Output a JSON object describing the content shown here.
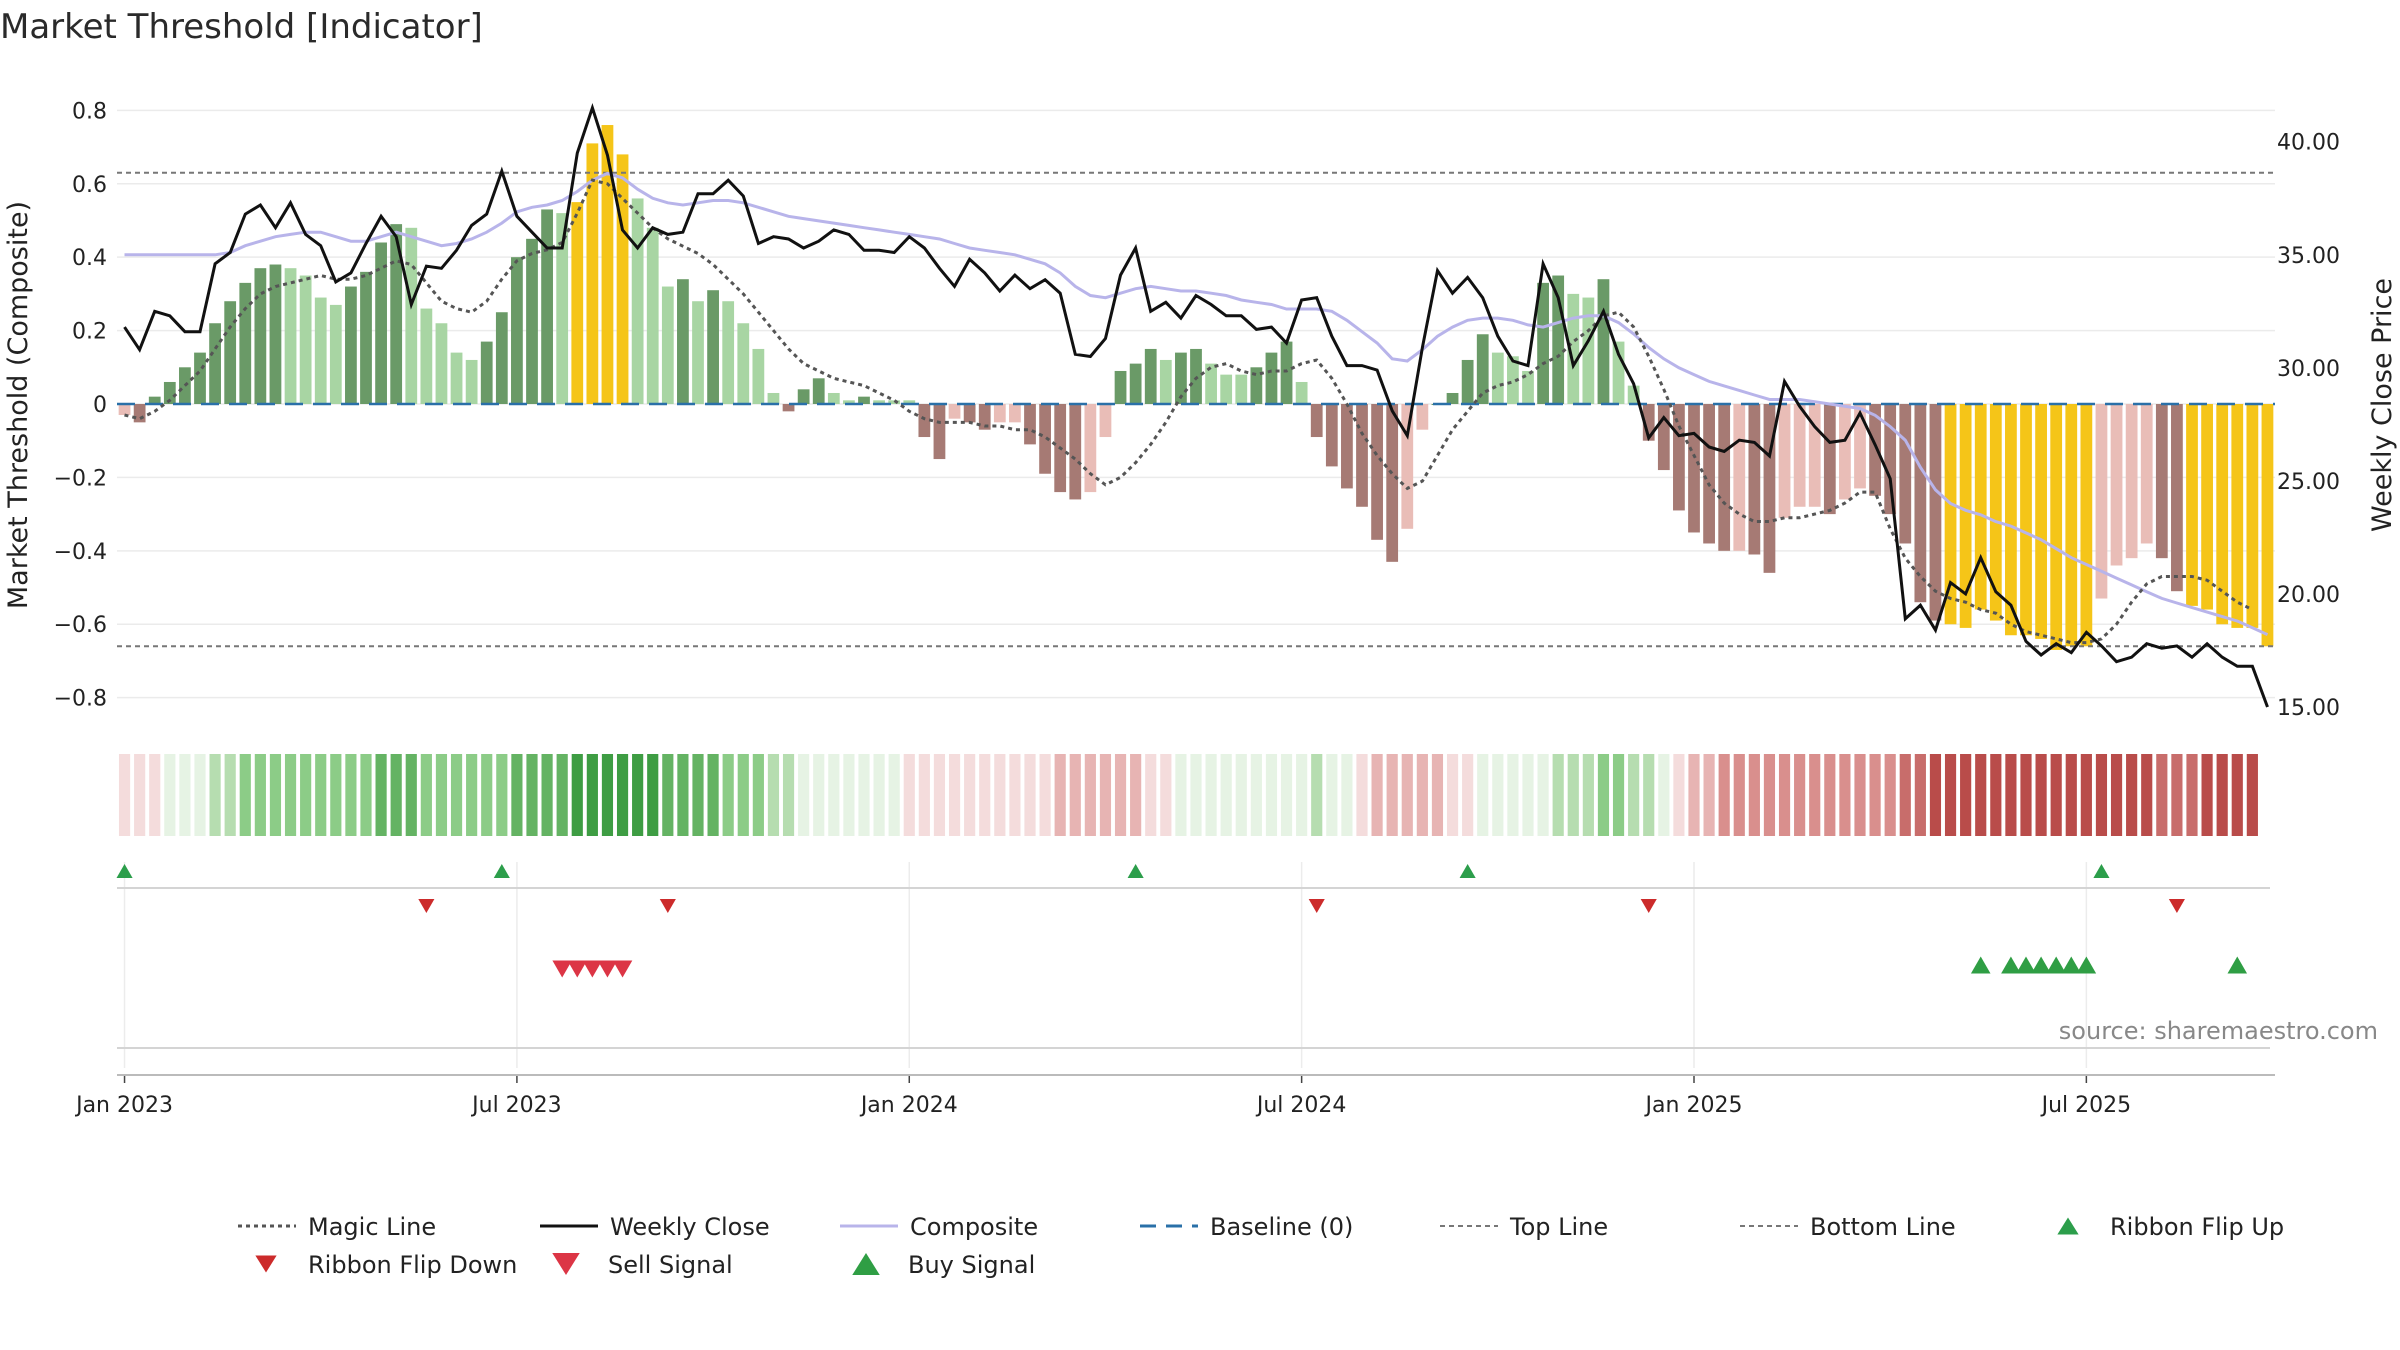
{
  "chart_data": {
    "type": "bar",
    "title": "Market Threshold [Indicator]",
    "ylabel_left": "Market Threshold (Composite)",
    "ylabel_right": "Weekly Close Price",
    "ylim_left": [
      -0.85,
      0.85
    ],
    "ylim_right": [
      14.6,
      42.2
    ],
    "left_ticks": [
      0.8,
      0.6,
      0.4,
      0.2,
      0,
      -0.2,
      -0.4,
      -0.6,
      -0.8
    ],
    "left_tick_labels": [
      "0.8",
      "0.6",
      "0.4",
      "0.2",
      "0",
      "−0.2",
      "−0.4",
      "−0.6",
      "−0.8"
    ],
    "right_ticks": [
      40,
      35,
      30,
      25,
      20,
      15
    ],
    "right_tick_labels": [
      "40.00",
      "35.00",
      "30.00",
      "25.00",
      "20.00",
      "15.00"
    ],
    "x_ticks": [
      1,
      27,
      53,
      79,
      105,
      131
    ],
    "x_tick_labels": [
      "Jan 2023",
      "Jul 2023",
      "Jan 2024",
      "Jul 2024",
      "Jan 2025",
      "Jul 2025"
    ],
    "top_line": 0.63,
    "bottom_line": -0.66,
    "baseline": 0,
    "weekly_close": [
      31.8,
      30.8,
      32.5,
      32.3,
      31.6,
      31.6,
      34.6,
      35.1,
      36.8,
      37.2,
      36.2,
      37.3,
      35.9,
      35.4,
      33.8,
      34.2,
      35.5,
      36.7,
      35.8,
      32.8,
      34.5,
      34.4,
      35.2,
      36.3,
      36.8,
      38.7,
      36.7,
      36.0,
      35.3,
      35.3,
      39.5,
      41.5,
      39.4,
      36.1,
      35.3,
      36.2,
      35.9,
      36.0,
      37.7,
      37.7,
      38.3,
      37.6,
      35.5,
      35.8,
      35.7,
      35.3,
      35.6,
      36.1,
      35.9,
      35.2,
      35.2,
      35.1,
      35.8,
      35.3,
      34.4,
      33.6,
      34.8,
      34.2,
      33.4,
      34.1,
      33.5,
      33.9,
      33.3,
      30.6,
      30.5,
      31.3,
      34.1,
      35.3,
      32.5,
      32.9,
      32.2,
      33.2,
      32.8,
      32.3,
      32.3,
      31.7,
      31.8,
      31.1,
      33.0,
      33.1,
      31.4,
      30.1,
      30.1,
      29.9,
      28.1,
      27.0,
      30.9,
      34.3,
      33.3,
      34.0,
      33.1,
      31.4,
      30.3,
      30.1,
      34.6,
      33.1,
      30.1,
      31.2,
      32.5,
      30.6,
      29.3,
      26.9,
      27.8,
      27.0,
      27.1,
      26.5,
      26.3,
      26.8,
      26.7,
      26.1,
      29.4,
      28.3,
      27.4,
      26.7,
      26.8,
      28.0,
      26.6,
      25.1,
      18.9,
      19.5,
      18.4,
      20.5,
      20.0,
      21.6,
      20.1,
      19.5,
      17.9,
      17.3,
      17.8,
      17.4,
      18.3,
      17.7,
      17.0,
      17.2,
      17.8,
      17.6,
      17.7,
      17.2,
      17.8,
      17.2,
      16.8,
      16.8,
      15.0
    ],
    "composite": [
      35.0,
      35.0,
      35.0,
      35.0,
      35.0,
      35.0,
      35.0,
      35.1,
      35.4,
      35.6,
      35.8,
      35.9,
      36.0,
      36.0,
      35.8,
      35.6,
      35.6,
      35.8,
      36.0,
      35.8,
      35.6,
      35.4,
      35.5,
      35.7,
      36.0,
      36.4,
      36.9,
      37.1,
      37.2,
      37.4,
      37.8,
      38.3,
      38.6,
      38.4,
      37.9,
      37.5,
      37.3,
      37.2,
      37.3,
      37.4,
      37.4,
      37.3,
      37.1,
      36.9,
      36.7,
      36.6,
      36.5,
      36.4,
      36.3,
      36.2,
      36.1,
      36.0,
      35.9,
      35.8,
      35.7,
      35.5,
      35.3,
      35.2,
      35.1,
      35.0,
      34.8,
      34.6,
      34.2,
      33.6,
      33.2,
      33.1,
      33.3,
      33.5,
      33.6,
      33.5,
      33.4,
      33.4,
      33.3,
      33.2,
      33.0,
      32.9,
      32.8,
      32.6,
      32.6,
      32.6,
      32.5,
      32.1,
      31.6,
      31.1,
      30.4,
      30.3,
      30.8,
      31.4,
      31.8,
      32.1,
      32.2,
      32.2,
      32.1,
      31.9,
      31.8,
      32.0,
      32.2,
      32.3,
      32.3,
      32.0,
      31.5,
      30.9,
      30.4,
      30.0,
      29.7,
      29.4,
      29.2,
      29.0,
      28.8,
      28.6,
      28.6,
      28.6,
      28.5,
      28.4,
      28.3,
      28.2,
      27.9,
      27.4,
      26.8,
      25.6,
      24.6,
      24.0,
      23.7,
      23.5,
      23.2,
      23.0,
      22.7,
      22.4,
      22.0,
      21.6,
      21.3,
      21.0,
      20.7,
      20.4,
      20.1,
      19.8,
      19.6,
      19.4,
      19.2,
      19.0,
      18.8,
      18.5,
      18.2
    ],
    "magic_line": [
      -0.03,
      -0.04,
      -0.02,
      0.01,
      0.05,
      0.09,
      0.15,
      0.21,
      0.26,
      0.3,
      0.32,
      0.33,
      0.34,
      0.35,
      0.34,
      0.34,
      0.35,
      0.37,
      0.39,
      0.38,
      0.33,
      0.28,
      0.26,
      0.25,
      0.28,
      0.34,
      0.39,
      0.41,
      0.42,
      0.44,
      0.52,
      0.61,
      0.6,
      0.56,
      0.52,
      0.48,
      0.45,
      0.43,
      0.41,
      0.38,
      0.34,
      0.3,
      0.25,
      0.2,
      0.15,
      0.11,
      0.09,
      0.07,
      0.06,
      0.05,
      0.03,
      0.01,
      -0.02,
      -0.04,
      -0.05,
      -0.05,
      -0.05,
      -0.06,
      -0.06,
      -0.07,
      -0.07,
      -0.09,
      -0.12,
      -0.15,
      -0.19,
      -0.22,
      -0.2,
      -0.16,
      -0.11,
      -0.05,
      0.02,
      0.07,
      0.1,
      0.11,
      0.09,
      0.08,
      0.09,
      0.09,
      0.11,
      0.12,
      0.07,
      0.0,
      -0.08,
      -0.14,
      -0.19,
      -0.23,
      -0.21,
      -0.14,
      -0.07,
      -0.02,
      0.03,
      0.05,
      0.06,
      0.08,
      0.11,
      0.13,
      0.17,
      0.2,
      0.24,
      0.25,
      0.21,
      0.13,
      0.04,
      -0.06,
      -0.14,
      -0.22,
      -0.27,
      -0.3,
      -0.32,
      -0.32,
      -0.31,
      -0.31,
      -0.3,
      -0.29,
      -0.27,
      -0.24,
      -0.24,
      -0.34,
      -0.42,
      -0.47,
      -0.51,
      -0.53,
      -0.54,
      -0.56,
      -0.57,
      -0.6,
      -0.62,
      -0.63,
      -0.64,
      -0.65,
      -0.65,
      -0.64,
      -0.6,
      -0.54,
      -0.49,
      -0.47,
      -0.47,
      -0.47,
      -0.48,
      -0.51,
      -0.54,
      -0.56
    ],
    "composite_bars": [
      -0.03,
      -0.05,
      0.02,
      0.06,
      0.1,
      0.14,
      0.22,
      0.28,
      0.33,
      0.37,
      0.38,
      0.37,
      0.35,
      0.29,
      0.27,
      0.32,
      0.36,
      0.44,
      0.49,
      0.48,
      0.26,
      0.22,
      0.14,
      0.12,
      0.17,
      0.25,
      0.4,
      0.45,
      0.53,
      0.52,
      0.55,
      0.71,
      0.76,
      0.68,
      0.56,
      0.48,
      0.32,
      0.34,
      0.28,
      0.31,
      0.28,
      0.22,
      0.15,
      0.03,
      -0.02,
      0.04,
      0.07,
      0.03,
      0.01,
      0.02,
      0.01,
      0.01,
      0.01,
      -0.09,
      -0.15,
      -0.04,
      -0.05,
      -0.07,
      -0.05,
      -0.05,
      -0.11,
      -0.19,
      -0.24,
      -0.26,
      -0.24,
      -0.09,
      0.09,
      0.11,
      0.15,
      0.12,
      0.14,
      0.15,
      0.11,
      0.08,
      0.08,
      0.1,
      0.14,
      0.17,
      0.06,
      -0.09,
      -0.17,
      -0.23,
      -0.28,
      -0.37,
      -0.43,
      -0.34,
      -0.07,
      0.0,
      0.03,
      0.12,
      0.19,
      0.14,
      0.13,
      0.09,
      0.33,
      0.35,
      0.3,
      0.29,
      0.34,
      0.17,
      0.05,
      -0.1,
      -0.18,
      -0.29,
      -0.35,
      -0.38,
      -0.4,
      -0.4,
      -0.41,
      -0.46,
      -0.31,
      -0.28,
      -0.28,
      -0.3,
      -0.26,
      -0.23,
      -0.25,
      -0.3,
      -0.38,
      -0.54,
      -0.59,
      -0.6,
      -0.61,
      -0.56,
      -0.59,
      -0.63,
      -0.63,
      -0.64,
      -0.67,
      -0.66,
      -0.66,
      -0.53,
      -0.44,
      -0.42,
      -0.38,
      -0.42,
      -0.51,
      -0.55,
      -0.56,
      -0.6,
      -0.61,
      -0.61,
      -0.66
    ],
    "bar_colors": {
      "positive_strong": "#6a9a67",
      "positive_weak": "#a8d5a3",
      "negative_strong": "#a67a74",
      "negative_weak": "#e9bdb7",
      "extreme": "#f5c518"
    },
    "ribbon_colors": {
      "green": [
        "#e6f3e4",
        "#b6ddb0",
        "#8ccc87",
        "#64b363",
        "#3e9d43"
      ],
      "red": [
        "#f4dcdc",
        "#e7b4b3",
        "#d98f8d",
        "#c86d6b",
        "#b94c4a"
      ]
    },
    "ribbon_flip_up_weeks": [
      1,
      26,
      68,
      90,
      132
    ],
    "ribbon_flip_down_weeks": [
      21,
      37,
      80,
      102,
      137
    ],
    "sell_signal_weeks": [
      30,
      31,
      32,
      33,
      34
    ],
    "buy_signal_weeks": [
      124,
      126,
      127,
      128,
      129,
      130,
      131,
      141
    ],
    "line_colors": {
      "magic": "#555555",
      "weekly_close": "#111111",
      "composite": "#b8b4ea",
      "baseline": "#2a70a8",
      "threshold": "#777777",
      "flip_up": "#2c9e4b",
      "flip_down": "#cc2b2b",
      "sell": "#dc3545",
      "buy": "#2f9e44"
    },
    "legend": [
      {
        "label": "Magic Line",
        "kind": "dotted"
      },
      {
        "label": "Weekly Close",
        "kind": "solid-black"
      },
      {
        "label": "Composite",
        "kind": "solid-lavender"
      },
      {
        "label": "Baseline (0)",
        "kind": "dashed-blue"
      },
      {
        "label": "Top Line",
        "kind": "dashed-gray"
      },
      {
        "label": "Bottom Line",
        "kind": "dashed-gray"
      },
      {
        "label": "Ribbon Flip Up",
        "kind": "tri-up-small"
      },
      {
        "label": "Ribbon Flip Down",
        "kind": "tri-down-small"
      },
      {
        "label": "Sell Signal",
        "kind": "tri-down-big"
      },
      {
        "label": "Buy Signal",
        "kind": "tri-up-big"
      }
    ],
    "source_text": "source: sharemaestro.com"
  }
}
